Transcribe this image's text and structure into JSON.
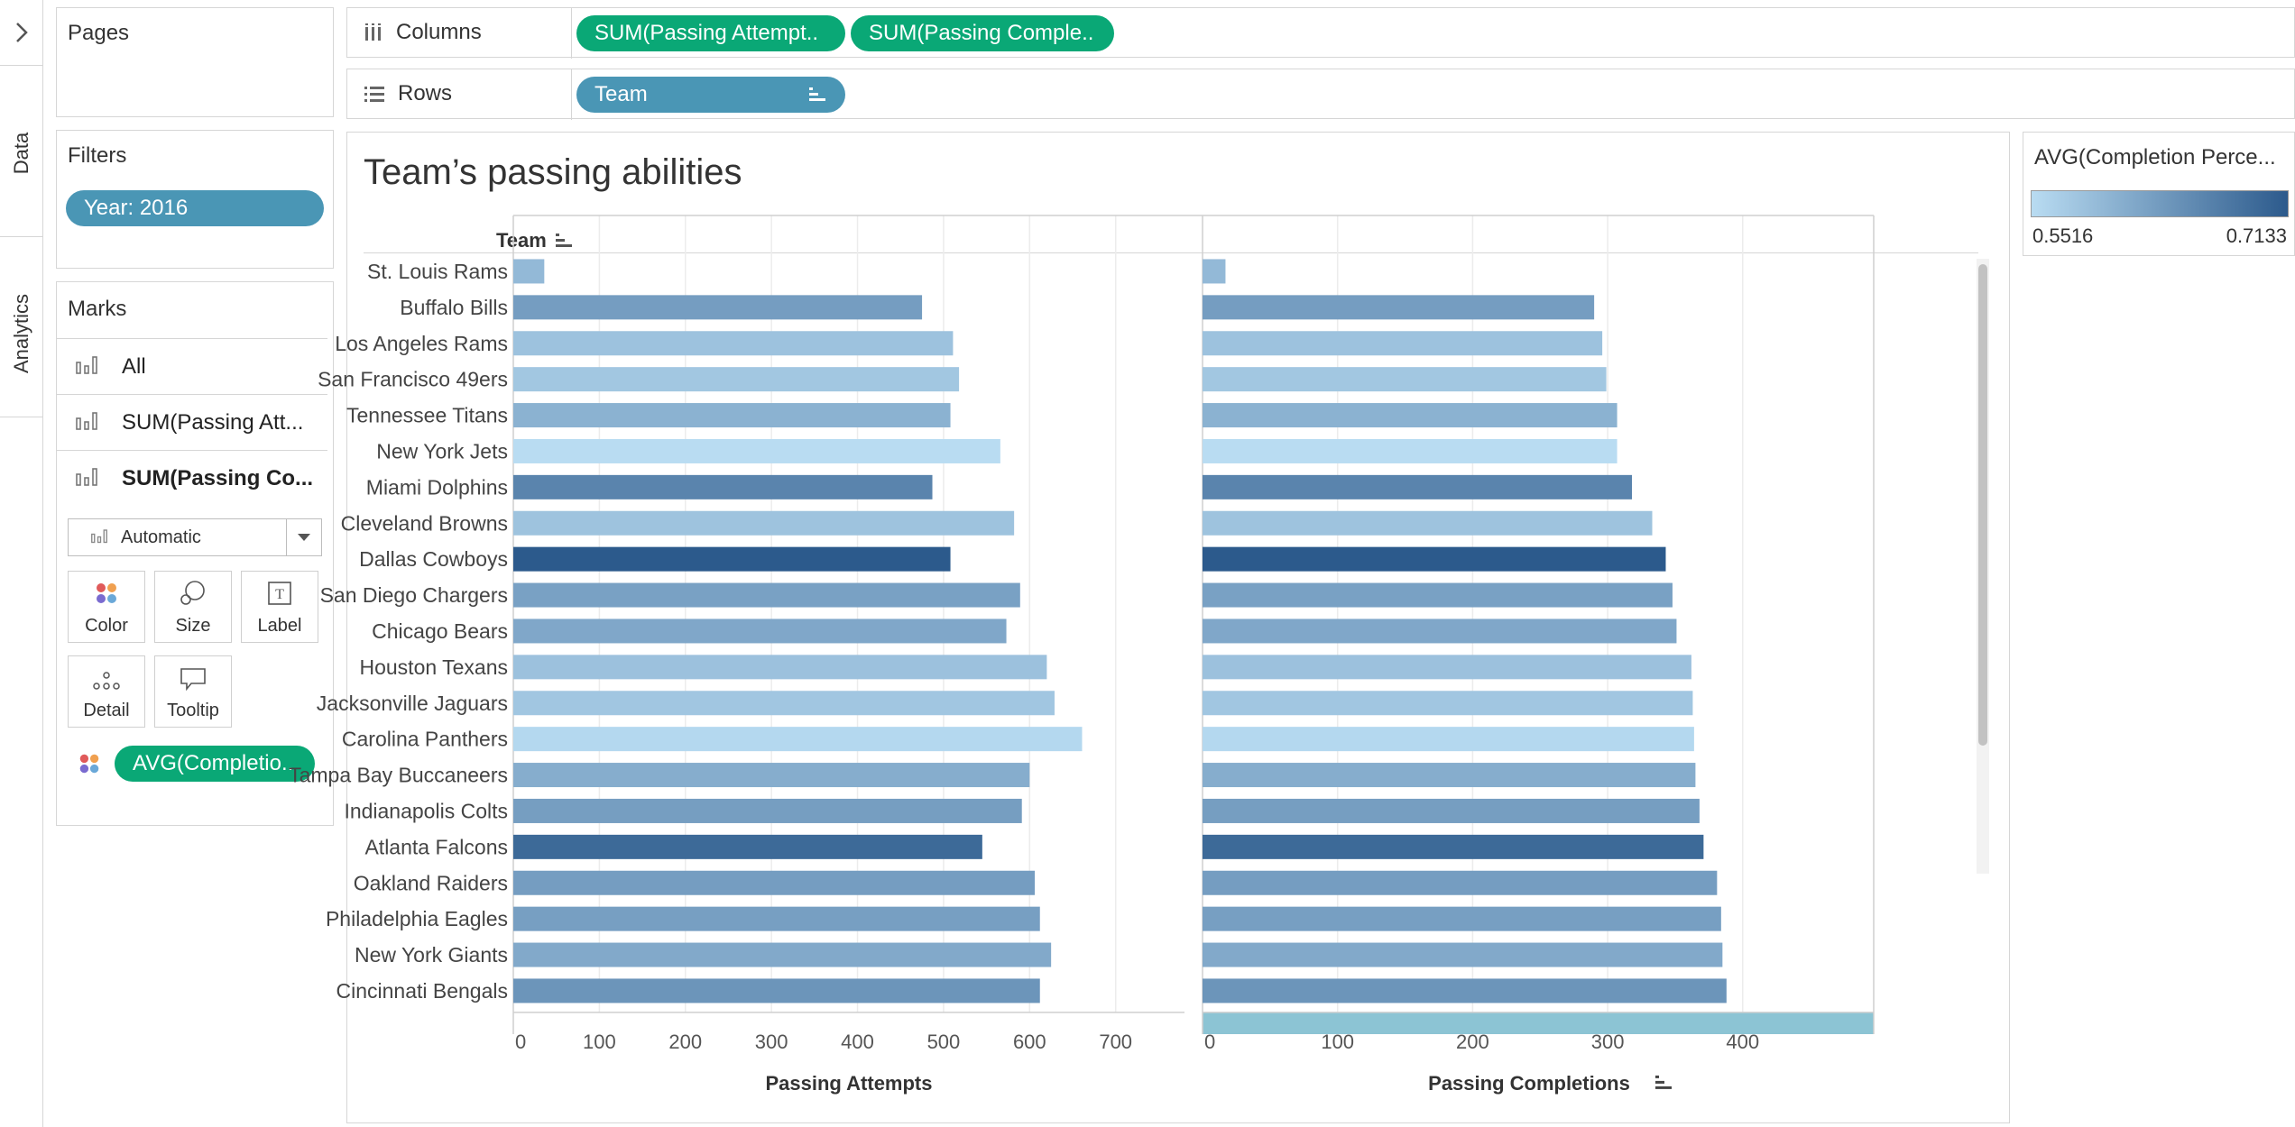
{
  "sidebar": {
    "expand_icon": "chevron-right-icon",
    "tabs": [
      {
        "label": "Data"
      },
      {
        "label": "Analytics"
      }
    ]
  },
  "pages_card": {
    "title": "Pages"
  },
  "filters_card": {
    "title": "Filters",
    "pill": "Year: 2016"
  },
  "marks_card": {
    "title": "Marks",
    "rows": [
      {
        "label": "All",
        "icon": "bar-chart-icon",
        "bold": false
      },
      {
        "label": "SUM(Passing Att...",
        "icon": "bar-chart-icon",
        "bold": false
      },
      {
        "label": "SUM(Passing Co...",
        "icon": "bar-chart-icon",
        "bold": true
      }
    ],
    "mark_type": "Automatic",
    "buttons": [
      {
        "label": "Color",
        "icon": "color-dots-icon"
      },
      {
        "label": "Size",
        "icon": "size-circles-icon"
      },
      {
        "label": "Label",
        "icon": "label-text-icon"
      },
      {
        "label": "Detail",
        "icon": "detail-dots-icon"
      },
      {
        "label": "Tooltip",
        "icon": "tooltip-bubble-icon"
      }
    ],
    "color_field": "AVG(Completio.."
  },
  "columns_shelf": {
    "label": "Columns",
    "icon": "columns-icon",
    "pills": [
      "SUM(Passing Attempt..",
      "SUM(Passing Comple.."
    ]
  },
  "rows_shelf": {
    "label": "Rows",
    "icon": "rows-icon",
    "pill": "Team",
    "pill_icon": "sort-descending-icon"
  },
  "legend": {
    "title": "AVG(Completion Perce...",
    "min": "0.5516",
    "max": "0.7133",
    "color_low": "#b9dcf2",
    "color_high": "#2c5a8c"
  },
  "chart_data": {
    "type": "bar",
    "title": "Team’s passing abilities",
    "row_header": "Team",
    "categories": [
      "St. Louis Rams",
      "Buffalo Bills",
      "Los Angeles Rams",
      "San Francisco 49ers",
      "Tennessee Titans",
      "New York Jets",
      "Miami Dolphins",
      "Cleveland Browns",
      "Dallas Cowboys",
      "San Diego Chargers",
      "Chicago Bears",
      "Houston Texans",
      "Jacksonville Jaguars",
      "Carolina Panthers",
      "Tampa Bay Buccaneers",
      "Indianapolis Colts",
      "Atlanta Falcons",
      "Oakland Raiders",
      "Philadelphia Eagles",
      "New York Giants",
      "Cincinnati Bengals"
    ],
    "series": [
      {
        "name": "Passing Attempts",
        "values": [
          36,
          475,
          511,
          518,
          508,
          566,
          487,
          582,
          508,
          589,
          573,
          620,
          629,
          661,
          600,
          591,
          545,
          606,
          612,
          625,
          612
        ],
        "xlim": [
          0,
          780
        ],
        "ticks": [
          0,
          100,
          200,
          300,
          400,
          500,
          600,
          700
        ]
      },
      {
        "name": "Passing Completions",
        "values": [
          17,
          290,
          296,
          299,
          307,
          307,
          318,
          333,
          343,
          348,
          351,
          362,
          363,
          364,
          365,
          368,
          371,
          381,
          384,
          385,
          388
        ],
        "xlim": [
          0,
          497
        ],
        "ticks": [
          0,
          100,
          200,
          300,
          400
        ]
      }
    ],
    "completion_pct": [
      0.595,
      0.63,
      0.584,
      0.578,
      0.604,
      0.5516,
      0.661,
      0.583,
      0.7133,
      0.625,
      0.617,
      0.585,
      0.579,
      0.557,
      0.61,
      0.629,
      0.694,
      0.63,
      0.627,
      0.615,
      0.64
    ],
    "color_range": [
      0.5516,
      0.7133
    ],
    "grid": true
  }
}
